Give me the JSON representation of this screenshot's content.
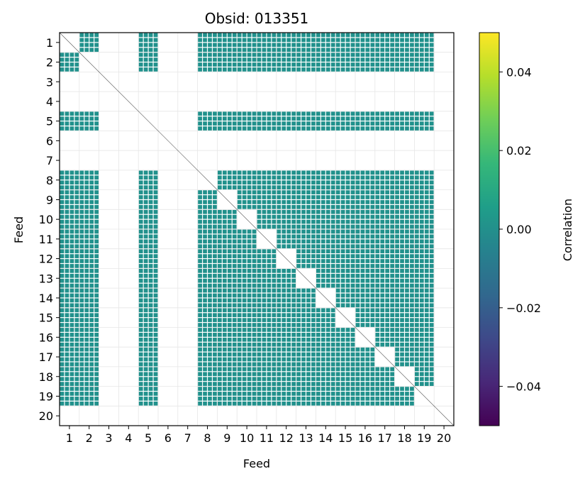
{
  "chart_data": {
    "type": "heatmap",
    "title": "Obsid: 013351",
    "xlabel": "Feed",
    "ylabel": "Feed",
    "x_ticks": [
      "1",
      "2",
      "3",
      "4",
      "5",
      "6",
      "7",
      "8",
      "9",
      "10",
      "11",
      "12",
      "13",
      "14",
      "15",
      "16",
      "17",
      "18",
      "19",
      "20"
    ],
    "y_ticks": [
      "1",
      "2",
      "3",
      "4",
      "5",
      "6",
      "7",
      "8",
      "9",
      "10",
      "11",
      "12",
      "13",
      "14",
      "15",
      "16",
      "17",
      "18",
      "19",
      "20"
    ],
    "feeds_with_data": [
      1,
      2,
      5,
      8,
      9,
      10,
      11,
      12,
      13,
      14,
      15,
      16,
      17,
      18,
      19
    ],
    "feeds_without_data": [
      3,
      4,
      6,
      7,
      20
    ],
    "cell_value": 0.0,
    "cell_color": "#21918c",
    "diagonal_color": "#ffffff",
    "grid": true,
    "colorbar": {
      "label": "Correlation",
      "min": -0.05,
      "max": 0.05,
      "ticks": [
        "0.04",
        "0.02",
        "0.00",
        "−0.02",
        "−0.04"
      ],
      "tick_values": [
        0.04,
        0.02,
        0.0,
        -0.02,
        -0.04
      ],
      "colormap": "viridis",
      "stops": [
        "#440154",
        "#482878",
        "#3e4989",
        "#31688e",
        "#26828e",
        "#1f9e89",
        "#35b779",
        "#6ece58",
        "#b5de2b",
        "#fde725"
      ]
    }
  }
}
